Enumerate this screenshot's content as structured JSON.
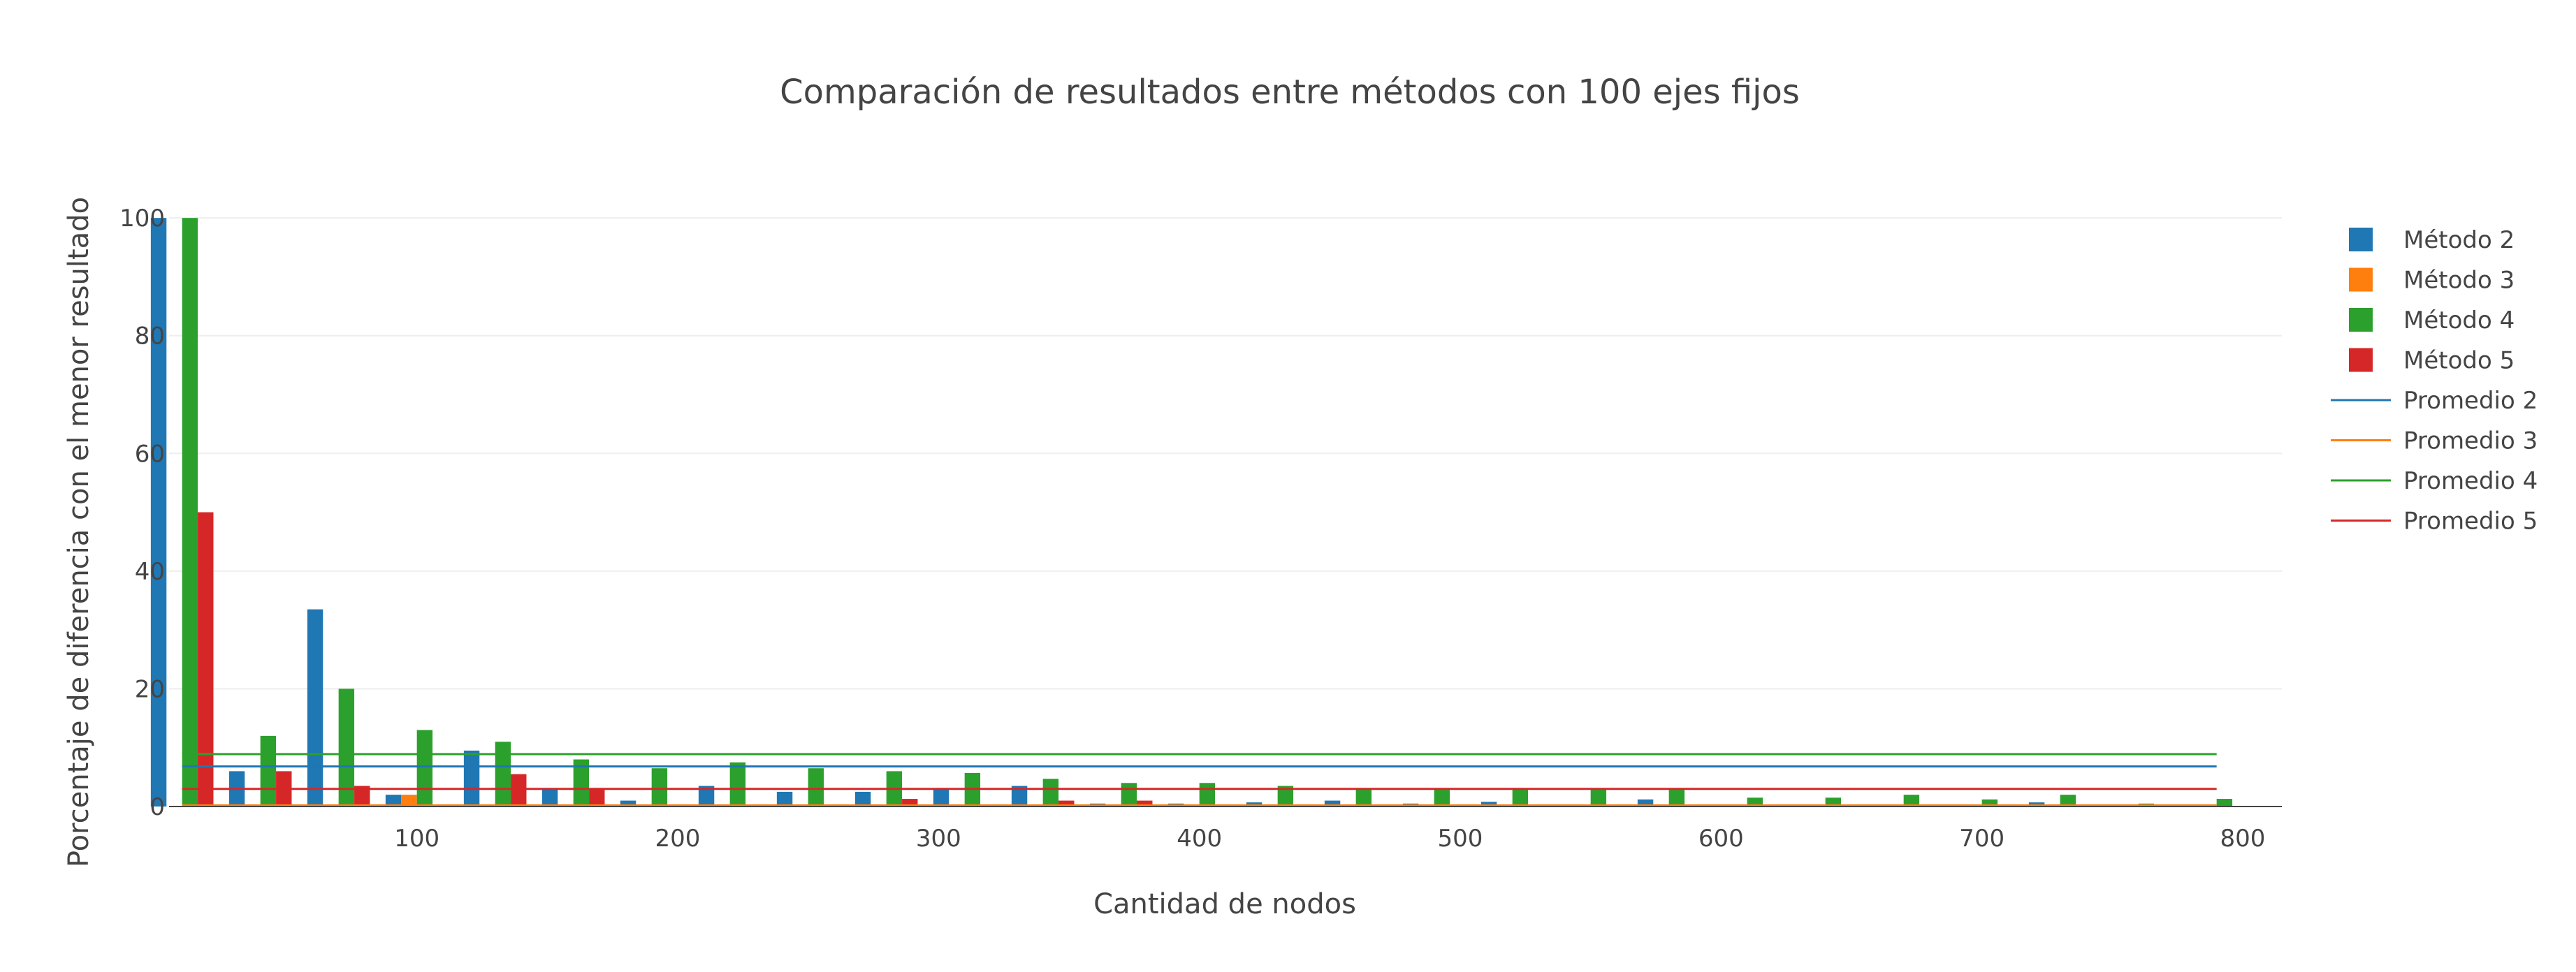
{
  "chart_data": {
    "type": "bar",
    "title": "Comparación de resultados entre métodos con 100 ejes fijos",
    "xlabel": "Cantidad de nodos",
    "ylabel": "Porcentaje de diferencia con el menor resultado",
    "xlim": [
      5,
      815
    ],
    "ylim": [
      0,
      105
    ],
    "x_ticks": [
      100,
      200,
      300,
      400,
      500,
      600,
      700,
      800
    ],
    "y_ticks": [
      0,
      20,
      40,
      60,
      80,
      100
    ],
    "grid": true,
    "legend_position": "right",
    "x": [
      10,
      40,
      70,
      100,
      130,
      160,
      190,
      220,
      250,
      280,
      310,
      340,
      370,
      400,
      430,
      460,
      490,
      520,
      550,
      580,
      610,
      640,
      670,
      700,
      730,
      760,
      790
    ],
    "series": [
      {
        "name": "Método 2",
        "color": "#1f77b4",
        "values": [
          100,
          6,
          33.5,
          2,
          9.5,
          3,
          1,
          3.5,
          2.5,
          2.5,
          3,
          3.5,
          0.5,
          0.5,
          0.7,
          1,
          0.5,
          0.8,
          0.3,
          1.2,
          0.3,
          0.3,
          0.3,
          0.3,
          0.7,
          0.3,
          0.3
        ]
      },
      {
        "name": "Método 3",
        "color": "#ff7f0e",
        "values": [
          0,
          0,
          0,
          2,
          0,
          0,
          0,
          0,
          0,
          0,
          0,
          0,
          0,
          0,
          0,
          0,
          0,
          0,
          0,
          0,
          0,
          0,
          0,
          0,
          0,
          0,
          0
        ]
      },
      {
        "name": "Método 4",
        "color": "#2ca02c",
        "values": [
          100,
          12,
          20,
          13,
          11,
          8,
          6.5,
          7.5,
          6.5,
          6,
          5.7,
          4.7,
          4,
          4,
          3.5,
          3,
          3,
          3,
          3,
          3,
          1.5,
          1.5,
          2,
          1.2,
          2,
          0.5,
          1.3
        ]
      },
      {
        "name": "Método 5",
        "color": "#d62728",
        "values": [
          50,
          6,
          3.5,
          0,
          5.5,
          3,
          0,
          0,
          0,
          1.3,
          0,
          1,
          1,
          0,
          0,
          0,
          0,
          0,
          0,
          0,
          0,
          0,
          0,
          0,
          0,
          0,
          0
        ]
      }
    ],
    "lines": [
      {
        "name": "Promedio 2",
        "color": "#1f77b4",
        "value": 6.8
      },
      {
        "name": "Promedio 3",
        "color": "#ff7f0e",
        "value": 0.2
      },
      {
        "name": "Promedio 4",
        "color": "#2ca02c",
        "value": 8.9
      },
      {
        "name": "Promedio 5",
        "color": "#d62728",
        "value": 3
      }
    ]
  }
}
